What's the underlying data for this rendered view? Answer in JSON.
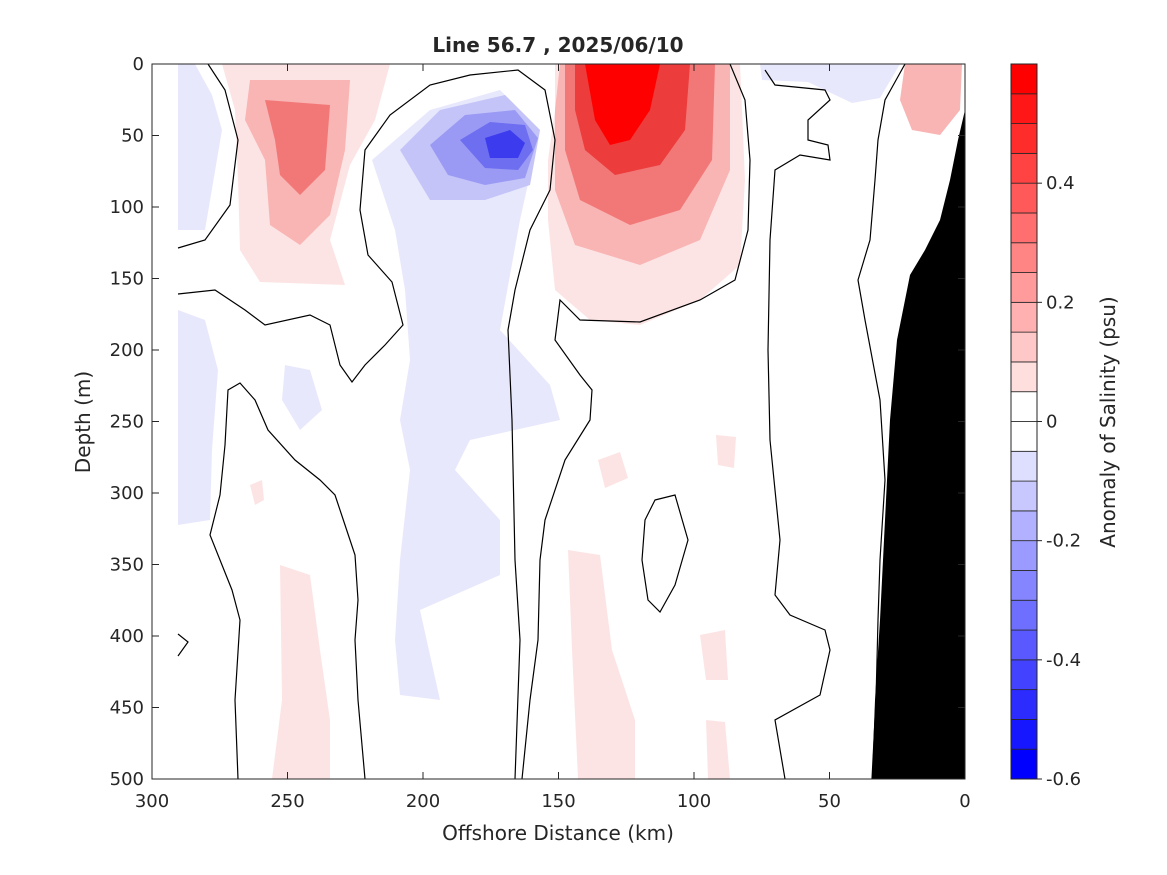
{
  "chart_data": {
    "type": "heatmap",
    "title": "Line 56.7 , 2025/06/10",
    "xlabel": "Offshore Distance (km)",
    "ylabel": "Depth (m)",
    "colorbar_label": "Anomaly of Salinity (psu)",
    "xlim": [
      300,
      0
    ],
    "ylim": [
      500,
      0
    ],
    "x_reversed": true,
    "y_reversed": true,
    "x_ticks": [
      300,
      250,
      200,
      150,
      100,
      50,
      0
    ],
    "y_ticks": [
      0,
      50,
      100,
      150,
      200,
      250,
      300,
      350,
      400,
      450,
      500
    ],
    "colorbar_range": [
      -0.6,
      0.6
    ],
    "colorbar_ticks": [
      0.4,
      0.2,
      0,
      -0.2,
      -0.4,
      -0.6
    ],
    "colorbar_step": 0.05,
    "colors": {
      "positive": "#ff0000",
      "negative": "#0000ff",
      "zero": "#ffffff",
      "bathymetry": "#000000",
      "contour": "#000000"
    },
    "features": [
      {
        "kind": "positive_max",
        "x": 127,
        "y": 40,
        "value": 0.55
      },
      {
        "kind": "positive",
        "x": 245,
        "y": 50,
        "value": 0.3
      },
      {
        "kind": "negative_min",
        "x": 168,
        "y": 55,
        "value": -0.4
      },
      {
        "kind": "positive",
        "x": 12,
        "y": 30,
        "value": 0.2
      },
      {
        "kind": "negative",
        "x": 288,
        "y": 55,
        "value": -0.15
      },
      {
        "kind": "negative",
        "x": 185,
        "y": 280,
        "value": -0.1
      }
    ]
  }
}
